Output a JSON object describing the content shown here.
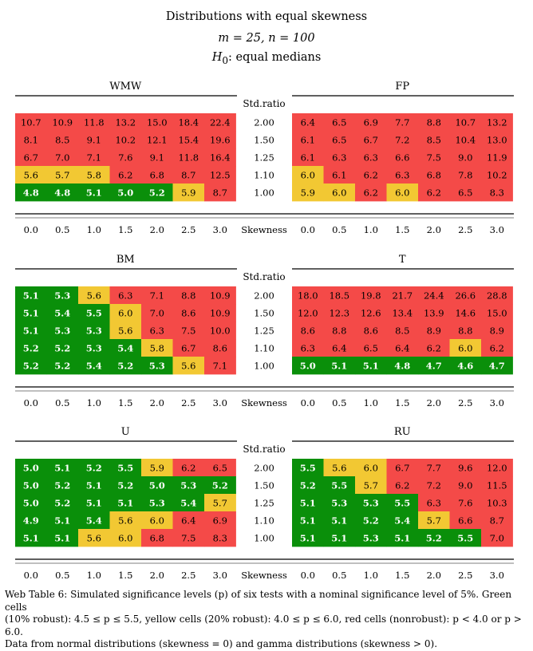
{
  "title": {
    "line1": "Distributions with equal skewness",
    "line2": "m = 25, n = 100",
    "line3_prefix": "H",
    "line3_sub": "0",
    "line3_rest": ": equal medians"
  },
  "center_header": "Std.ratio",
  "skewness_label": "Skewness",
  "std_ratio_labels": [
    "2.00",
    "1.50",
    "1.25",
    "1.10",
    "1.00"
  ],
  "skewness_ticks": [
    "0.0",
    "0.5",
    "1.0",
    "1.5",
    "2.0",
    "2.5",
    "3.0"
  ],
  "colors": {
    "green": "#0a8f0a",
    "yellow": "#f2c833",
    "red": "#f44a48"
  },
  "legend_rule": {
    "green": "4.5 <= p <= 5.5 (10% robust)",
    "yellow": "4.0 <= p <= 6.0 (20% robust)",
    "red": "p < 4.0 or p > 6.0 (nonrobust)"
  },
  "chart_data": [
    {
      "type": "heatmap",
      "title": "WMW",
      "rows": [
        "2.00",
        "1.50",
        "1.25",
        "1.10",
        "1.00"
      ],
      "columns": [
        "0.0",
        "0.5",
        "1.0",
        "1.5",
        "2.0",
        "2.5",
        "3.0"
      ],
      "values": [
        [
          10.7,
          10.9,
          11.8,
          13.2,
          15.0,
          18.4,
          22.4
        ],
        [
          8.1,
          8.5,
          9.1,
          10.2,
          12.1,
          15.4,
          19.6
        ],
        [
          6.7,
          7.0,
          7.1,
          7.6,
          9.1,
          11.8,
          16.4
        ],
        [
          5.6,
          5.7,
          5.8,
          6.2,
          6.8,
          8.7,
          12.5
        ],
        [
          4.8,
          4.8,
          5.1,
          5.0,
          5.2,
          5.9,
          8.7
        ]
      ]
    },
    {
      "type": "heatmap",
      "title": "FP",
      "rows": [
        "2.00",
        "1.50",
        "1.25",
        "1.10",
        "1.00"
      ],
      "columns": [
        "0.0",
        "0.5",
        "1.0",
        "1.5",
        "2.0",
        "2.5",
        "3.0"
      ],
      "values": [
        [
          6.4,
          6.5,
          6.9,
          7.7,
          8.8,
          10.7,
          13.2
        ],
        [
          6.1,
          6.5,
          6.7,
          7.2,
          8.5,
          10.4,
          13.0
        ],
        [
          6.1,
          6.3,
          6.3,
          6.6,
          7.5,
          9.0,
          11.9
        ],
        [
          6.0,
          6.1,
          6.2,
          6.3,
          6.8,
          7.8,
          10.2
        ],
        [
          5.9,
          6.0,
          6.2,
          6.0,
          6.2,
          6.5,
          8.3
        ]
      ]
    },
    {
      "type": "heatmap",
      "title": "BM",
      "rows": [
        "2.00",
        "1.50",
        "1.25",
        "1.10",
        "1.00"
      ],
      "columns": [
        "0.0",
        "0.5",
        "1.0",
        "1.5",
        "2.0",
        "2.5",
        "3.0"
      ],
      "values": [
        [
          5.1,
          5.3,
          5.6,
          6.3,
          7.1,
          8.8,
          10.9
        ],
        [
          5.1,
          5.4,
          5.5,
          6.0,
          7.0,
          8.6,
          10.9
        ],
        [
          5.1,
          5.3,
          5.3,
          5.6,
          6.3,
          7.5,
          10.0
        ],
        [
          5.2,
          5.2,
          5.3,
          5.4,
          5.8,
          6.7,
          8.6
        ],
        [
          5.2,
          5.2,
          5.4,
          5.2,
          5.3,
          5.6,
          7.1
        ]
      ]
    },
    {
      "type": "heatmap",
      "title": "T",
      "rows": [
        "2.00",
        "1.50",
        "1.25",
        "1.10",
        "1.00"
      ],
      "columns": [
        "0.0",
        "0.5",
        "1.0",
        "1.5",
        "2.0",
        "2.5",
        "3.0"
      ],
      "values": [
        [
          18.0,
          18.5,
          19.8,
          21.7,
          24.4,
          26.6,
          28.8
        ],
        [
          12.0,
          12.3,
          12.6,
          13.4,
          13.9,
          14.6,
          15.0
        ],
        [
          8.6,
          8.8,
          8.6,
          8.5,
          8.9,
          8.8,
          8.9
        ],
        [
          6.3,
          6.4,
          6.5,
          6.4,
          6.2,
          6.0,
          6.2
        ],
        [
          5.0,
          5.1,
          5.1,
          4.8,
          4.7,
          4.6,
          4.7
        ]
      ]
    },
    {
      "type": "heatmap",
      "title": "U",
      "rows": [
        "2.00",
        "1.50",
        "1.25",
        "1.10",
        "1.00"
      ],
      "columns": [
        "0.0",
        "0.5",
        "1.0",
        "1.5",
        "2.0",
        "2.5",
        "3.0"
      ],
      "values": [
        [
          5.0,
          5.1,
          5.2,
          5.5,
          5.9,
          6.2,
          6.5
        ],
        [
          5.0,
          5.2,
          5.1,
          5.2,
          5.0,
          5.3,
          5.2
        ],
        [
          5.0,
          5.2,
          5.1,
          5.1,
          5.3,
          5.4,
          5.7
        ],
        [
          4.9,
          5.1,
          5.4,
          5.6,
          6.0,
          6.4,
          6.9
        ],
        [
          5.1,
          5.1,
          5.6,
          6.0,
          6.8,
          7.5,
          8.3
        ]
      ]
    },
    {
      "type": "heatmap",
      "title": "RU",
      "rows": [
        "2.00",
        "1.50",
        "1.25",
        "1.10",
        "1.00"
      ],
      "columns": [
        "0.0",
        "0.5",
        "1.0",
        "1.5",
        "2.0",
        "2.5",
        "3.0"
      ],
      "values": [
        [
          5.5,
          5.6,
          6.0,
          6.7,
          7.7,
          9.6,
          12.0
        ],
        [
          5.2,
          5.5,
          5.7,
          6.2,
          7.2,
          9.0,
          11.5
        ],
        [
          5.1,
          5.3,
          5.3,
          5.5,
          6.3,
          7.6,
          10.3
        ],
        [
          5.1,
          5.1,
          5.2,
          5.4,
          5.7,
          6.6,
          8.7
        ],
        [
          5.1,
          5.1,
          5.3,
          5.1,
          5.2,
          5.5,
          7.0
        ]
      ]
    }
  ],
  "caption": {
    "line1": "Web Table 6: Simulated significance levels (p) of six tests with a nominal significance level of 5%. Green cells",
    "line2": "(10% robust): 4.5 ≤ p ≤ 5.5, yellow cells (20% robust): 4.0 ≤ p ≤ 6.0, red cells (nonrobust): p < 4.0 or p > 6.0.",
    "line3": "Data from normal distributions (skewness = 0) and gamma distributions (skewness > 0)."
  }
}
